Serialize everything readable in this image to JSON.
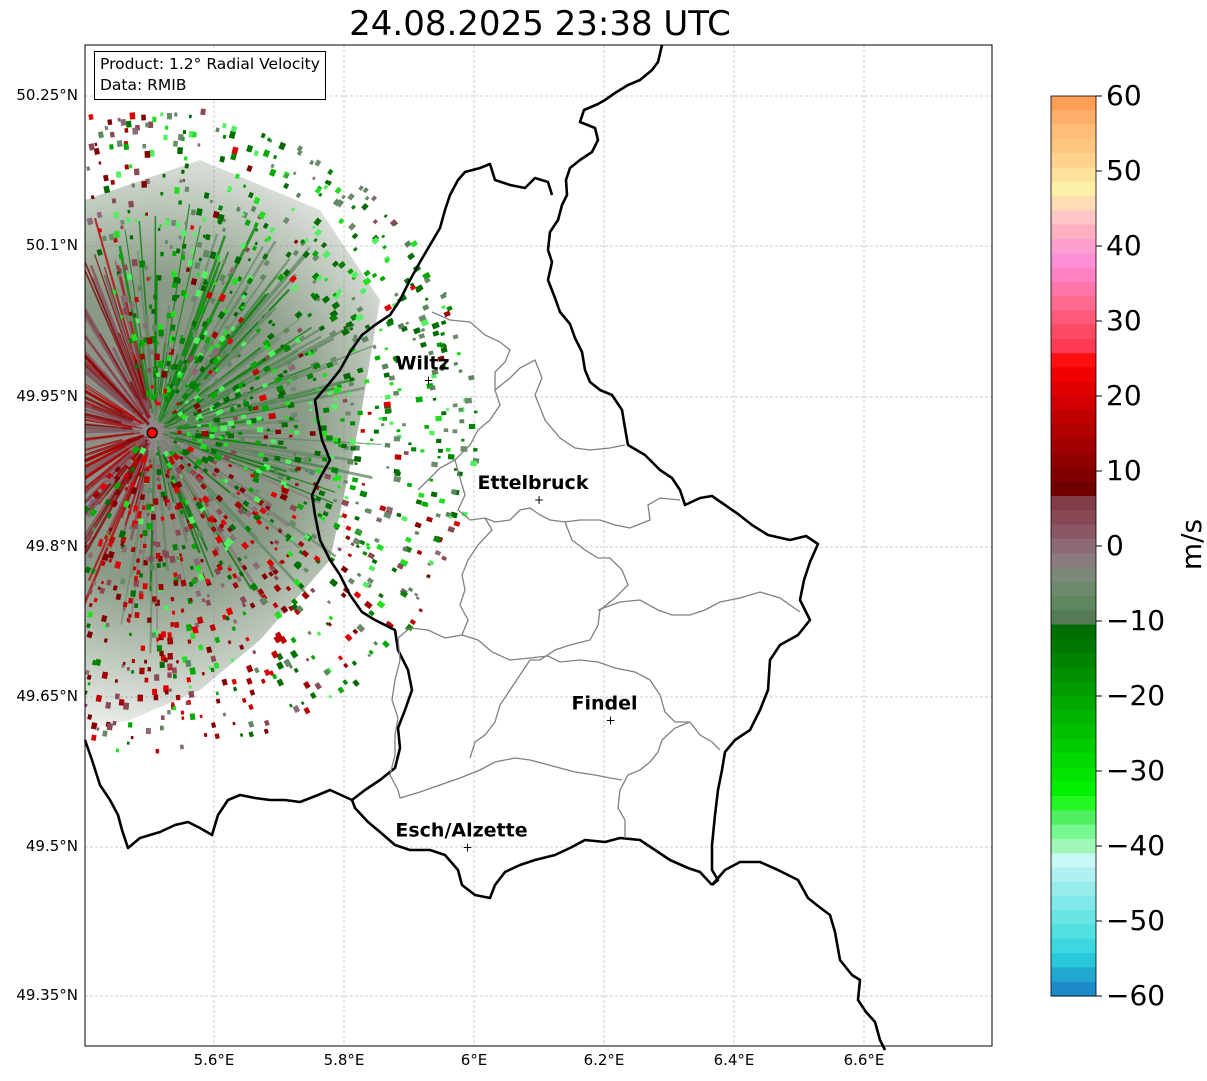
{
  "title": "24.08.2025 23:38 UTC",
  "info": {
    "product": "Product: 1.2° Radial Velocity",
    "data": "Data: RMIB"
  },
  "axes": {
    "y_ticks": [
      "50.25°N",
      "50.1°N",
      "49.95°N",
      "49.8°N",
      "49.65°N",
      "49.5°N",
      "49.35°N"
    ],
    "x_ticks": [
      "5.6°E",
      "5.8°E",
      "6°E",
      "6.2°E",
      "6.4°E",
      "6.6°E"
    ]
  },
  "colorbar": {
    "unit": "m/s",
    "min": -60,
    "max": 60,
    "tick_labels": [
      "60",
      "50",
      "40",
      "30",
      "20",
      "10",
      "0",
      "−10",
      "−20",
      "−30",
      "−40",
      "−50",
      "−60"
    ],
    "colors_top_to_bottom": [
      "#ff9f55",
      "#ffae6a",
      "#ffbd78",
      "#ffc682",
      "#ffd28d",
      "#ffe19c",
      "#fff0a8",
      "#ffdcb4",
      "#ffc6c6",
      "#ffb0c0",
      "#ff9fd0",
      "#ff8fd6",
      "#ff82c4",
      "#ff76a8",
      "#ff6a90",
      "#ff5a7a",
      "#ff4a66",
      "#ff3a55",
      "#ff1010",
      "#f00000",
      "#e00000",
      "#d00000",
      "#c00000",
      "#b00000",
      "#a00000",
      "#900000",
      "#800000",
      "#700000",
      "#823c48",
      "#884856",
      "#8a5865",
      "#8c6a75",
      "#8a7b7e",
      "#7d8878",
      "#6c8a6b",
      "#5e8760",
      "#567a56",
      "#006e00",
      "#007800",
      "#008400",
      "#009000",
      "#009c00",
      "#00a800",
      "#00b400",
      "#00c000",
      "#00cc00",
      "#00d800",
      "#00e400",
      "#00f000",
      "#20fa20",
      "#50f060",
      "#78f890",
      "#a0f8b8",
      "#c8f8f4",
      "#b0f0f0",
      "#98ecec",
      "#80e8e8",
      "#68e4e4",
      "#50e0e0",
      "#3cd8e0",
      "#28c8d8",
      "#22a8d0",
      "#1f8ac8"
    ]
  },
  "cities": [
    {
      "name": "Wiltz",
      "lon": 5.93,
      "lat": 49.966
    },
    {
      "name": "Ettelbruck",
      "lon": 6.1,
      "lat": 49.847
    },
    {
      "name": "Findel",
      "lon": 6.21,
      "lat": 49.627
    },
    {
      "name": "Esch/Alzette",
      "lon": 5.99,
      "lat": 49.5
    }
  ],
  "radar_site": {
    "lon": 5.505,
    "lat": 49.914,
    "color": "#ff0000"
  },
  "map_extent": {
    "lon_min": 5.4,
    "lon_max": 6.8,
    "lat_min": 49.3,
    "lat_max": 50.3
  }
}
